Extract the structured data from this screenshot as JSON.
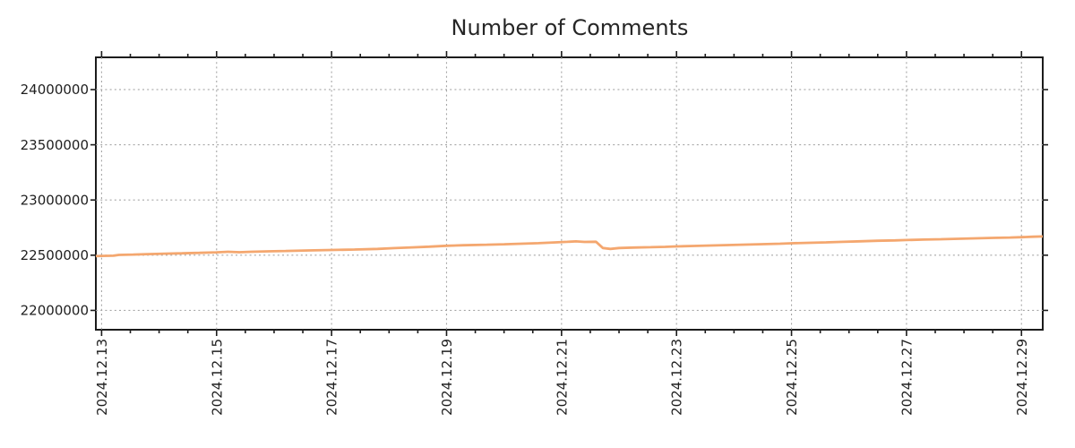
{
  "chart_data": {
    "type": "line",
    "title": "Number of Comments",
    "xlabel": "",
    "ylabel": "",
    "legend": "none",
    "grid": true,
    "x_axis": {
      "unit": "date",
      "tick_labels": [
        "2024.12.13",
        "2024.12.15",
        "2024.12.17",
        "2024.12.19",
        "2024.12.21",
        "2024.12.23",
        "2024.12.25",
        "2024.12.27",
        "2024.12.29"
      ],
      "tick_days": [
        0,
        2,
        4,
        6,
        8,
        10,
        12,
        14,
        16
      ],
      "minor_tick_step_days": 0.5,
      "range_days": [
        -0.1,
        16.37
      ]
    },
    "y_axis": {
      "tick_labels": [
        "22000000",
        "22500000",
        "23000000",
        "23500000",
        "24000000"
      ],
      "tick_values": [
        22000000,
        22500000,
        23000000,
        23500000,
        24000000
      ],
      "range": [
        21825000,
        24292000
      ]
    },
    "series": [
      {
        "name": "Number of Comments",
        "color": "#f4a76f",
        "points": [
          [
            -0.1,
            22491000
          ],
          [
            0.0,
            22494000
          ],
          [
            0.2,
            22495000
          ],
          [
            0.3,
            22503000
          ],
          [
            0.55,
            22506000
          ],
          [
            0.8,
            22510000
          ],
          [
            1.1,
            22514000
          ],
          [
            1.4,
            22517000
          ],
          [
            1.7,
            22521000
          ],
          [
            2.0,
            22526000
          ],
          [
            2.2,
            22531000
          ],
          [
            2.4,
            22527000
          ],
          [
            2.6,
            22531000
          ],
          [
            2.9,
            22535000
          ],
          [
            3.2,
            22538000
          ],
          [
            3.6,
            22543000
          ],
          [
            4.0,
            22547000
          ],
          [
            4.4,
            22551000
          ],
          [
            4.8,
            22557000
          ],
          [
            5.1,
            22564000
          ],
          [
            5.4,
            22571000
          ],
          [
            5.7,
            22577000
          ],
          [
            6.0,
            22585000
          ],
          [
            6.3,
            22590000
          ],
          [
            6.7,
            22595000
          ],
          [
            7.0,
            22599000
          ],
          [
            7.3,
            22604000
          ],
          [
            7.6,
            22609000
          ],
          [
            7.9,
            22616000
          ],
          [
            8.1,
            22621000
          ],
          [
            8.25,
            22625000
          ],
          [
            8.4,
            22620000
          ],
          [
            8.6,
            22622000
          ],
          [
            8.72,
            22565000
          ],
          [
            8.85,
            22557000
          ],
          [
            9.0,
            22565000
          ],
          [
            9.25,
            22569000
          ],
          [
            9.55,
            22572000
          ],
          [
            9.8,
            22576000
          ],
          [
            10.0,
            22580000
          ],
          [
            10.3,
            22584000
          ],
          [
            10.6,
            22588000
          ],
          [
            10.9,
            22592000
          ],
          [
            11.2,
            22596000
          ],
          [
            11.5,
            22600000
          ],
          [
            11.8,
            22604000
          ],
          [
            12.0,
            22608000
          ],
          [
            12.3,
            22612000
          ],
          [
            12.6,
            22616000
          ],
          [
            12.9,
            22621000
          ],
          [
            13.2,
            22626000
          ],
          [
            13.5,
            22631000
          ],
          [
            13.8,
            22634000
          ],
          [
            14.0,
            22637000
          ],
          [
            14.3,
            22641000
          ],
          [
            14.6,
            22645000
          ],
          [
            14.9,
            22649000
          ],
          [
            15.2,
            22653000
          ],
          [
            15.5,
            22657000
          ],
          [
            15.8,
            22660000
          ],
          [
            16.0,
            22663000
          ],
          [
            16.2,
            22667000
          ],
          [
            16.37,
            22670000
          ]
        ]
      }
    ],
    "colors": {
      "line": "#f4a76f",
      "grid": "#a6a6a6",
      "axis": "#1c1c1c",
      "text": "#1f1f1f",
      "background": "#ffffff"
    }
  }
}
